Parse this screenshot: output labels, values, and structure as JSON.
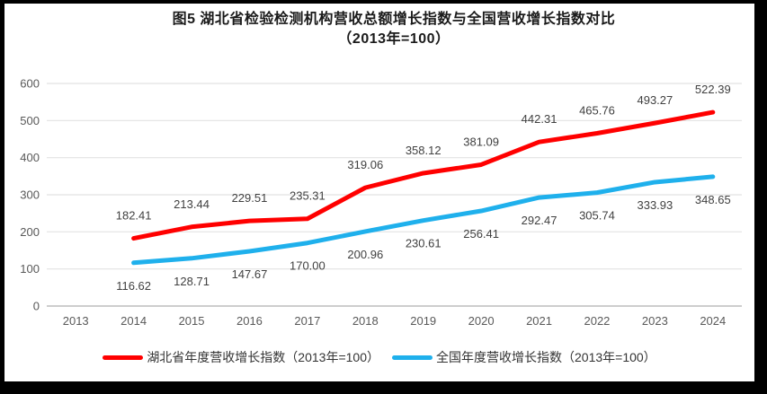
{
  "chart_data": {
    "type": "line",
    "title": "图5 湖北省检验检测机构营收总额增长指数与全国营收增长指数对比",
    "subtitle": "（2013年=100）",
    "categories": [
      "2013",
      "2014",
      "2015",
      "2016",
      "2017",
      "2018",
      "2019",
      "2020",
      "2021",
      "2022",
      "2023",
      "2024"
    ],
    "ylim": [
      0,
      600
    ],
    "y_ticks": [
      "0",
      "100",
      "200",
      "300",
      "400",
      "500",
      "600"
    ],
    "grid": true,
    "legend_position": "bottom",
    "series": [
      {
        "name": "湖北省年度营收增长指数（2013年=100）",
        "color": "#FF0000",
        "label_position": "above",
        "values": [
          null,
          182.41,
          213.44,
          229.51,
          235.31,
          319.06,
          358.12,
          381.09,
          442.31,
          465.76,
          493.27,
          522.39
        ],
        "labels": [
          "",
          "182.41",
          "213.44",
          "229.51",
          "235.31",
          "319.06",
          "358.12",
          "381.09",
          "442.31",
          "465.76",
          "493.27",
          "522.39"
        ]
      },
      {
        "name": "全国年度营收增长指数（2013年=100）",
        "color": "#1FB0EC",
        "label_position": "below",
        "values": [
          null,
          116.62,
          128.71,
          147.67,
          170.0,
          200.96,
          230.61,
          256.41,
          292.47,
          305.74,
          333.93,
          348.65
        ],
        "labels": [
          "",
          "116.62",
          "128.71",
          "147.67",
          "170.00",
          "200.96",
          "230.61",
          "256.41",
          "292.47",
          "305.74",
          "333.93",
          "348.65"
        ]
      }
    ]
  },
  "style": {
    "frame_border_color": "#000000",
    "background_color": "#ffffff",
    "grid_color": "#E2E2E2",
    "axis_line_color": "#C6C6C6",
    "axis_label_color": "#595959",
    "data_label_color": "#404040",
    "title_color": "#1a1a1a",
    "legend_text_color": "#333333"
  }
}
